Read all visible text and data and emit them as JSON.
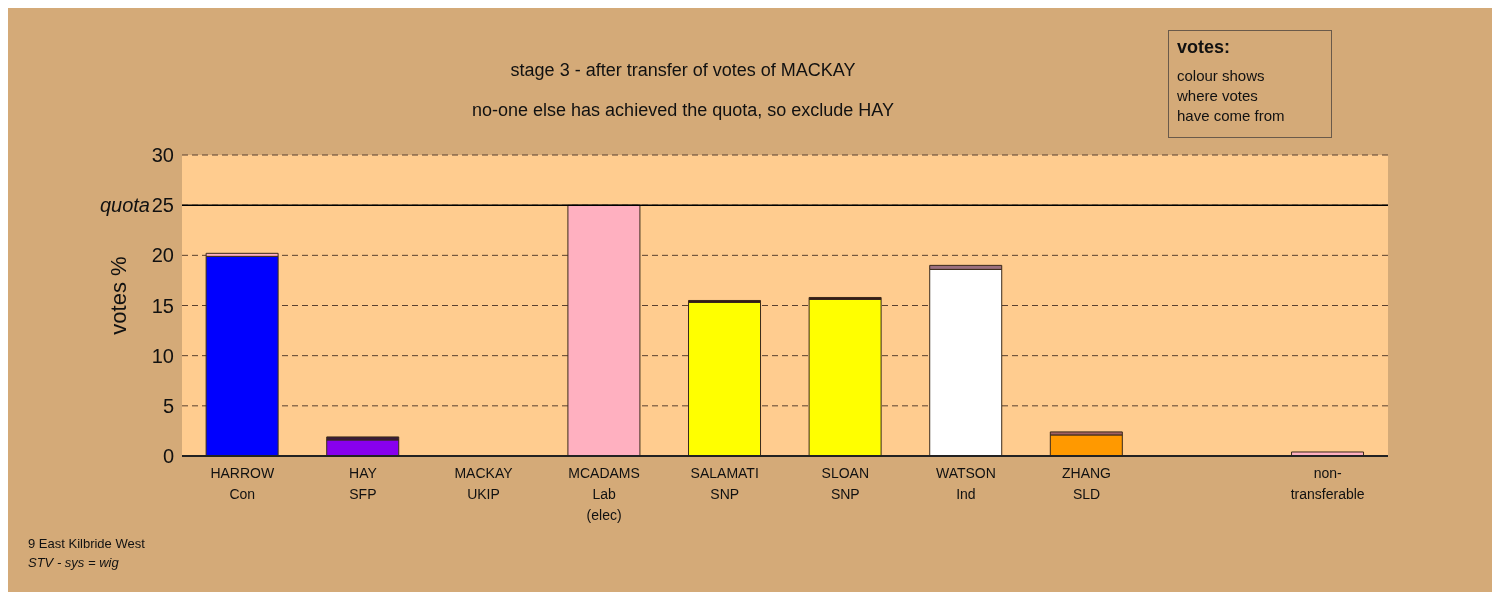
{
  "chart_data": {
    "type": "bar",
    "title": "stage 3 - after transfer of votes of MACKAY",
    "subtitle": "no-one else has achieved the quota, so exclude HAY",
    "ylabel": "votes %",
    "categories": [
      "HARROW\nCon",
      "HAY\nSFP",
      "MACKAY\nUKIP",
      "MCADAMS\nLab\n(elec)",
      "SALAMATI\nSNP",
      "SLOAN\nSNP",
      "WATSON\nInd",
      "ZHANG\nSLD",
      null,
      "non-\ntransferable"
    ],
    "stacked": true,
    "series": [
      {
        "colors": [
          "#0000ff",
          "#8800ee",
          "#888888",
          "#ffb0c0",
          "#ffff00",
          "#ffff00",
          "#ffffff",
          "#ff9900",
          "#888888",
          "#ffb0c0"
        ],
        "values": [
          19.9,
          1.6,
          0,
          25,
          15.3,
          15.6,
          18.6,
          2.1,
          0,
          0.4
        ]
      },
      {
        "colors": [
          "#ffb0c0",
          "#3a1a3a",
          "#888888",
          "#ffb0c0",
          "#3a1a1a",
          "#3a1a1a",
          "#9a7080",
          "#a06060",
          "#888888",
          "#ffb0c0"
        ],
        "values": [
          0.3,
          0.3,
          0,
          0,
          0.2,
          0.2,
          0.4,
          0.3,
          0,
          0
        ]
      }
    ],
    "ylim": [
      0,
      30
    ],
    "yticks": [
      0,
      5,
      10,
      15,
      20,
      25,
      30
    ],
    "grid": "y",
    "ref_lines": [
      {
        "axis": "y",
        "value": 25,
        "label": "quota",
        "color": "#000000"
      }
    ],
    "annotations": [
      "votes:",
      "colour shows\nwhere votes\nhave come from",
      "9 East Kilbride West",
      "STV - sys = wig"
    ]
  }
}
